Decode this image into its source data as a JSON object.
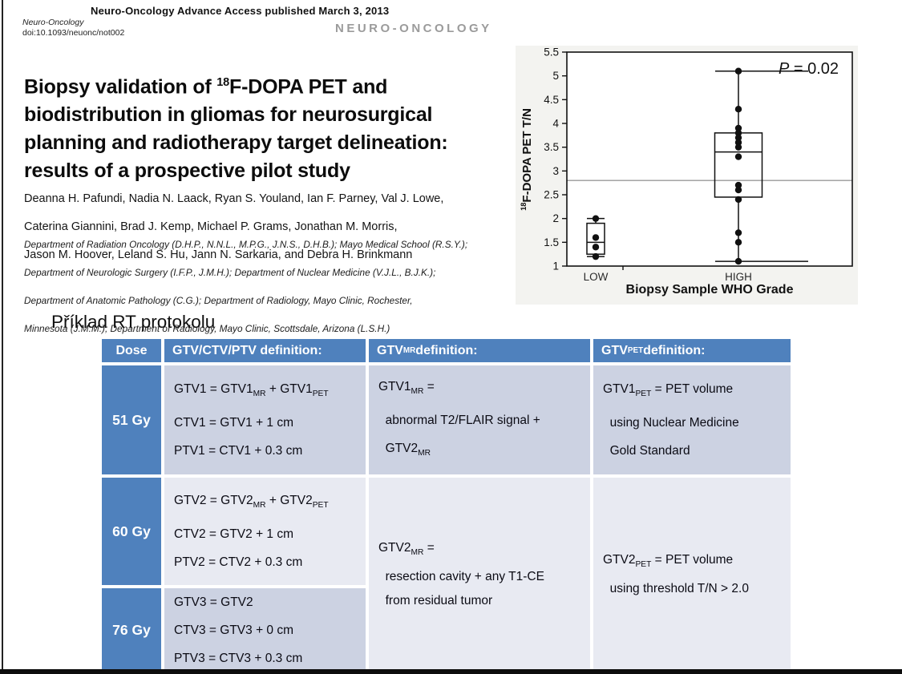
{
  "journal_header": {
    "advance_access": "Neuro-Oncology Advance Access published March 3, 2013",
    "journal_name": "Neuro-Oncology",
    "doi": "doi:10.1093/neuonc/not002",
    "logo": "NEURO-ONCOLOGY"
  },
  "article": {
    "title_lines": [
      [
        {
          "t": "Biopsy validation of "
        },
        {
          "sup": "18"
        },
        {
          "t": "F-DOPA PET and"
        }
      ],
      [
        {
          "t": "biodistribution in gliomas for neurosurgical"
        }
      ],
      [
        {
          "t": "planning and radiotherapy target delineation:"
        }
      ],
      [
        {
          "t": "results of a prospective pilot study"
        }
      ]
    ],
    "author_lines": [
      "Deanna H. Pafundi, Nadia N. Laack, Ryan S. Youland, Ian F. Parney, Val J. Lowe,",
      "Caterina Giannini, Brad J. Kemp, Michael P. Grams, Jonathan M. Morris,",
      "Jason M. Hoover, Leland S. Hu, Jann N. Sarkaria, and Debra H. Brinkmann"
    ],
    "affiliation_lines": [
      "Department of Radiation Oncology (D.H.P., N.N.L., M.P.G., J.N.S., D.H.B.); Mayo Medical School (R.S.Y.);",
      "Department of Neurologic Surgery (I.F.P., J.M.H.); Department of Nuclear Medicine (V.J.L., B.J.K.);",
      "Department of Anatomic Pathology (C.G.); Department of Radiology, Mayo Clinic, Rochester,",
      "Minnesota (J.M.M.); Department of Radiology, Mayo Clinic, Scottsdale, Arizona (L.S.H.)"
    ]
  },
  "chart_data": {
    "type": "boxplot",
    "xlabel": "Biopsy Sample WHO Grade",
    "ylabel_rich": [
      {
        "sup": "18"
      },
      {
        "t": "F-DOPA PET T/N"
      }
    ],
    "annotation_rich": [
      {
        "i": "P"
      },
      {
        "t": " = 0.02"
      }
    ],
    "ylim": [
      1,
      5.5
    ],
    "yticks": [
      1,
      1.5,
      2,
      2.5,
      3,
      3.5,
      4,
      4.5,
      5,
      5.5
    ],
    "reference_line_y": 2.8,
    "grid": false,
    "legend": false,
    "categories": [
      "LOW",
      "HIGH"
    ],
    "series": [
      {
        "category": "LOW",
        "min": 1.2,
        "q1": 1.25,
        "median": 1.5,
        "q3": 1.9,
        "max": 2.0,
        "points": [
          2.0,
          1.6,
          1.4,
          1.2
        ]
      },
      {
        "category": "HIGH",
        "min": 1.1,
        "q1": 2.45,
        "median": 3.4,
        "q3": 3.8,
        "max": 5.1,
        "points": [
          5.1,
          4.3,
          3.9,
          3.8,
          3.7,
          3.6,
          3.5,
          3.3,
          2.7,
          2.6,
          2.4,
          1.7,
          1.5,
          1.1
        ]
      }
    ]
  },
  "slide": {
    "title": "Příklad RT protokolu",
    "table": {
      "headers": {
        "dose": [
          {
            "t": "Dose"
          }
        ],
        "def": [
          {
            "t": "GTV/CTV/PTV definition:"
          }
        ],
        "mr": [
          {
            "t": "GTV"
          },
          {
            "sub": "MR"
          },
          {
            "t": " definition:"
          }
        ],
        "pet": [
          {
            "t": "GTV"
          },
          {
            "sub": "PET"
          },
          {
            "t": " definition:"
          }
        ]
      },
      "row_51": {
        "dose": "51 Gy",
        "def_lines": [
          [
            {
              "t": "GTV1 = GTV1"
            },
            {
              "sub": "MR"
            },
            {
              "t": " + GTV1"
            },
            {
              "sub": "PET"
            }
          ],
          [
            {
              "t": "CTV1 = GTV1 + 1 cm"
            }
          ],
          [
            {
              "t": "PTV1 = CTV1 + 0.3 cm"
            }
          ]
        ],
        "mr_lines": [
          [
            {
              "t": "GTV1"
            },
            {
              "sub": "MR"
            },
            {
              "t": " ="
            }
          ],
          [
            {
              "t": "  abnormal T2/FLAIR signal +"
            }
          ],
          [
            {
              "t": "  GTV2"
            },
            {
              "sub": "MR"
            }
          ]
        ],
        "pet_lines": [
          [
            {
              "t": "GTV1"
            },
            {
              "sub": "PET"
            },
            {
              "t": " = PET volume"
            }
          ],
          [
            {
              "t": "  using Nuclear Medicine"
            }
          ],
          [
            {
              "t": "  Gold Standard"
            }
          ]
        ]
      },
      "row_60": {
        "dose": "60 Gy",
        "def_lines": [
          [
            {
              "t": "GTV2 = GTV2"
            },
            {
              "sub": "MR"
            },
            {
              "t": " + GTV2"
            },
            {
              "sub": "PET"
            }
          ],
          [
            {
              "t": "CTV2 = GTV2 + 1 cm"
            }
          ],
          [
            {
              "t": "PTV2 = CTV2 + 0.3 cm"
            }
          ]
        ]
      },
      "row_76": {
        "dose": "76 Gy",
        "def_lines": [
          [
            {
              "t": "GTV3 = GTV2"
            }
          ],
          [
            {
              "t": "CTV3 = GTV3 + 0 cm"
            }
          ],
          [
            {
              "t": "PTV3 = CTV3 + 0.3 cm"
            }
          ]
        ]
      },
      "merged_mr_lines": [
        [
          {
            "t": "GTV2"
          },
          {
            "sub": "MR"
          },
          {
            "t": " ="
          }
        ],
        [
          {
            "t": "  resection cavity + any T1-CE"
          }
        ],
        [
          {
            "t": "  from residual tumor"
          }
        ]
      ],
      "merged_pet_lines": [
        [
          {
            "t": "GTV2"
          },
          {
            "sub": "PET"
          },
          {
            "t": " = PET volume"
          }
        ],
        [
          {
            "t": "  using threshold T/N > 2.0"
          }
        ]
      ]
    }
  },
  "colors": {
    "accent_blue": "#4f81bd",
    "band_dark": "#ccd2e2",
    "band_light": "#e8eaf2",
    "logo_gray": "#9b9b9b",
    "figure_bg": "#f3f3f0",
    "reference_line": "#999999",
    "ink": "#111111"
  }
}
